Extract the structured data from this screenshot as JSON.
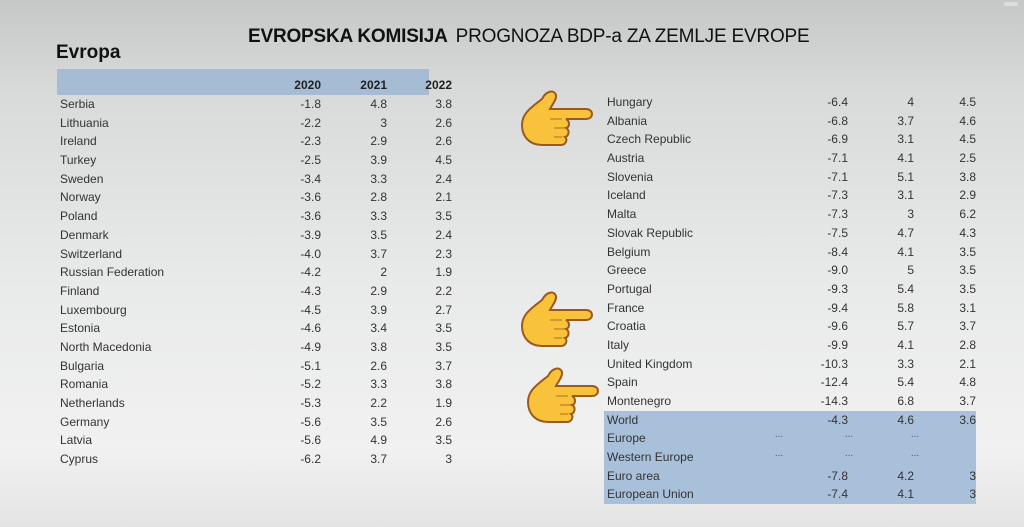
{
  "title": {
    "bold": "EVROPSKA KOMISIJA",
    "regular": "PROGNOZA BDP-a  ZA ZEMLJE EVROPE"
  },
  "subtitle": "Evropa",
  "table": {
    "columns": [
      "",
      "2020",
      "2021",
      "2022"
    ],
    "left_rows": [
      {
        "country": "Serbia",
        "y2020": "-1.8",
        "y2021": "4.8",
        "y2022": "3.8"
      },
      {
        "country": "Lithuania",
        "y2020": "-2.2",
        "y2021": "3",
        "y2022": "2.6"
      },
      {
        "country": "Ireland",
        "y2020": "-2.3",
        "y2021": "2.9",
        "y2022": "2.6"
      },
      {
        "country": "Turkey",
        "y2020": "-2.5",
        "y2021": "3.9",
        "y2022": "4.5"
      },
      {
        "country": "Sweden",
        "y2020": "-3.4",
        "y2021": "3.3",
        "y2022": "2.4"
      },
      {
        "country": "Norway",
        "y2020": "-3.6",
        "y2021": "2.8",
        "y2022": "2.1"
      },
      {
        "country": "Poland",
        "y2020": "-3.6",
        "y2021": "3.3",
        "y2022": "3.5"
      },
      {
        "country": "Denmark",
        "y2020": "-3.9",
        "y2021": "3.5",
        "y2022": "2.4"
      },
      {
        "country": "Switzerland",
        "y2020": "-4.0",
        "y2021": "3.7",
        "y2022": "2.3"
      },
      {
        "country": "Russian Federation",
        "y2020": "-4.2",
        "y2021": "2",
        "y2022": "1.9"
      },
      {
        "country": "Finland",
        "y2020": "-4.3",
        "y2021": "2.9",
        "y2022": "2.2"
      },
      {
        "country": "Luxembourg",
        "y2020": "-4.5",
        "y2021": "3.9",
        "y2022": "2.7"
      },
      {
        "country": "Estonia",
        "y2020": "-4.6",
        "y2021": "3.4",
        "y2022": "3.5"
      },
      {
        "country": "North Macedonia",
        "y2020": "-4.9",
        "y2021": "3.8",
        "y2022": "3.5"
      },
      {
        "country": "Bulgaria",
        "y2020": "-5.1",
        "y2021": "2.6",
        "y2022": "3.7"
      },
      {
        "country": "Romania",
        "y2020": "-5.2",
        "y2021": "3.3",
        "y2022": "3.8"
      },
      {
        "country": "Netherlands",
        "y2020": "-5.3",
        "y2021": "2.2",
        "y2022": "1.9"
      },
      {
        "country": "Germany",
        "y2020": "-5.6",
        "y2021": "3.5",
        "y2022": "2.6"
      },
      {
        "country": "Latvia",
        "y2020": "-5.6",
        "y2021": "4.9",
        "y2022": "3.5"
      },
      {
        "country": "Cyprus",
        "y2020": "-6.2",
        "y2021": "3.7",
        "y2022": "3"
      }
    ],
    "right_rows": [
      {
        "country": "Hungary",
        "y2020": "-6.4",
        "y2021": "4",
        "y2022": "4.5"
      },
      {
        "country": "Albania",
        "y2020": "-6.8",
        "y2021": "3.7",
        "y2022": "4.6"
      },
      {
        "country": "Czech Republic",
        "y2020": "-6.9",
        "y2021": "3.1",
        "y2022": "4.5"
      },
      {
        "country": "Austria",
        "y2020": "-7.1",
        "y2021": "4.1",
        "y2022": "2.5"
      },
      {
        "country": "Slovenia",
        "y2020": "-7.1",
        "y2021": "5.1",
        "y2022": "3.8"
      },
      {
        "country": "Iceland",
        "y2020": "-7.3",
        "y2021": "3.1",
        "y2022": "2.9"
      },
      {
        "country": "Malta",
        "y2020": "-7.3",
        "y2021": "3",
        "y2022": "6.2"
      },
      {
        "country": "Slovak Republic",
        "y2020": "-7.5",
        "y2021": "4.7",
        "y2022": "4.3"
      },
      {
        "country": "Belgium",
        "y2020": "-8.4",
        "y2021": "4.1",
        "y2022": "3.5"
      },
      {
        "country": "Greece",
        "y2020": "-9.0",
        "y2021": "5",
        "y2022": "3.5"
      },
      {
        "country": "Portugal",
        "y2020": "-9.3",
        "y2021": "5.4",
        "y2022": "3.5"
      },
      {
        "country": "France",
        "y2020": "-9.4",
        "y2021": "5.8",
        "y2022": "3.1"
      },
      {
        "country": "Croatia",
        "y2020": "-9.6",
        "y2021": "5.7",
        "y2022": "3.7"
      },
      {
        "country": "Italy",
        "y2020": "-9.9",
        "y2021": "4.1",
        "y2022": "2.8"
      },
      {
        "country": "United Kingdom",
        "y2020": "-10.3",
        "y2021": "3.3",
        "y2022": "2.1"
      },
      {
        "country": "Spain",
        "y2020": "-12.4",
        "y2021": "5.4",
        "y2022": "4.8"
      },
      {
        "country": "Montenegro",
        "y2020": "-14.3",
        "y2021": "6.8",
        "y2022": "3.7"
      }
    ],
    "aggregate_rows": [
      {
        "country": "World",
        "y2020": "-4.3",
        "y2021": "4.6",
        "y2022": "3.6"
      },
      {
        "country": "Europe",
        "y2020": "...",
        "y2021": "...",
        "y2022": "..."
      },
      {
        "country": "Western Europe",
        "y2020": "...",
        "y2021": "...",
        "y2022": "..."
      },
      {
        "country": "Euro area",
        "y2020": "-7.8",
        "y2021": "4.2",
        "y2022": "3"
      },
      {
        "country": "European Union",
        "y2020": "-7.4",
        "y2021": "4.1",
        "y2022": "3"
      }
    ]
  },
  "annotations": [
    {
      "icon": "pointing-hand-icon",
      "points_to": "Albania"
    },
    {
      "icon": "pointing-hand-icon",
      "points_to": "Croatia"
    },
    {
      "icon": "pointing-hand-icon",
      "points_to": "Montenegro"
    }
  ],
  "colors": {
    "header_bar": "#a6bcd5",
    "aggregate_bg": "#a9c0da",
    "hand_fill": "#f8c33a",
    "hand_outline": "#9a5a1e"
  }
}
